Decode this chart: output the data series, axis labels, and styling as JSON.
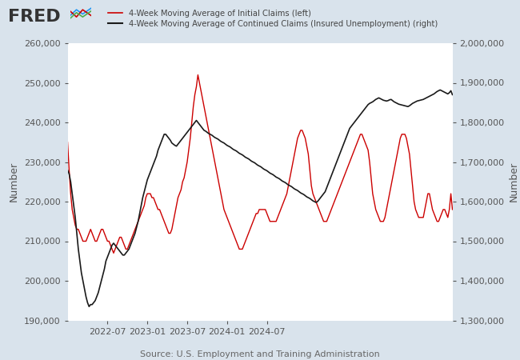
{
  "legend_label_left": "4-Week Moving Average of Initial Claims (left)",
  "legend_label_right": "4-Week Moving Average of Continued Claims (Insured Unemployment) (right)",
  "source": "Source: U.S. Employment and Training Administration",
  "left_ylabel": "Number",
  "right_ylabel": "Number",
  "ylim_left": [
    190000,
    260000
  ],
  "ylim_right": [
    1300000,
    2000000
  ],
  "yticks_left": [
    190000,
    200000,
    210000,
    220000,
    230000,
    240000,
    250000,
    260000
  ],
  "yticks_right": [
    1300000,
    1400000,
    1500000,
    1600000,
    1700000,
    1800000,
    1900000,
    2000000
  ],
  "outer_bg_color": "#d9e3ec",
  "plot_bg_color": "#f0f4f8",
  "line_color_left": "#cc0000",
  "line_color_right": "#1a1a1a",
  "grid_color": "#ffffff",
  "xtick_labels": [
    "2022-07",
    "2023-01",
    "2023-07",
    "2024-01",
    "2024-07"
  ],
  "initial_claims": [
    235000,
    228000,
    222000,
    218000,
    216000,
    214000,
    213000,
    213000,
    212000,
    211000,
    210000,
    210000,
    210000,
    211000,
    212000,
    213000,
    212000,
    211000,
    210000,
    210000,
    211000,
    212000,
    213000,
    213000,
    212000,
    211000,
    210000,
    210000,
    209000,
    208000,
    207000,
    208000,
    209000,
    210000,
    211000,
    211000,
    210000,
    209000,
    208000,
    208000,
    209000,
    210000,
    211000,
    212000,
    213000,
    214000,
    215000,
    216000,
    217000,
    218000,
    219000,
    221000,
    222000,
    222000,
    222000,
    221000,
    221000,
    220000,
    219000,
    218000,
    218000,
    217000,
    216000,
    215000,
    214000,
    213000,
    212000,
    212000,
    213000,
    215000,
    217000,
    219000,
    221000,
    222000,
    223000,
    225000,
    226000,
    228000,
    230000,
    233000,
    236000,
    240000,
    244000,
    247000,
    249000,
    252000,
    250000,
    248000,
    246000,
    244000,
    242000,
    240000,
    238000,
    236000,
    234000,
    232000,
    230000,
    228000,
    226000,
    224000,
    222000,
    220000,
    218000,
    217000,
    216000,
    215000,
    214000,
    213000,
    212000,
    211000,
    210000,
    209000,
    208000,
    208000,
    208000,
    209000,
    210000,
    211000,
    212000,
    213000,
    214000,
    215000,
    216000,
    217000,
    217000,
    218000,
    218000,
    218000,
    218000,
    218000,
    217000,
    216000,
    215000,
    215000,
    215000,
    215000,
    215000,
    216000,
    217000,
    218000,
    219000,
    220000,
    221000,
    222000,
    224000,
    226000,
    228000,
    230000,
    232000,
    234000,
    236000,
    237000,
    238000,
    238000,
    237000,
    236000,
    234000,
    232000,
    228000,
    224000,
    222000,
    221000,
    220000,
    219000,
    218000,
    217000,
    216000,
    215000,
    215000,
    215000,
    216000,
    217000,
    218000,
    219000,
    220000,
    221000,
    222000,
    223000,
    224000,
    225000,
    226000,
    227000,
    228000,
    229000,
    230000,
    231000,
    232000,
    233000,
    234000,
    235000,
    236000,
    237000,
    237000,
    236000,
    235000,
    234000,
    233000,
    230000,
    226000,
    222000,
    220000,
    218000,
    217000,
    216000,
    215000,
    215000,
    215000,
    216000,
    218000,
    220000,
    222000,
    224000,
    226000,
    228000,
    230000,
    232000,
    234000,
    236000,
    237000,
    237000,
    237000,
    236000,
    234000,
    232000,
    228000,
    224000,
    220000,
    218000,
    217000,
    216000,
    216000,
    216000,
    216000,
    218000,
    220000,
    222000,
    222000,
    220000,
    218000,
    217000,
    216000,
    215000,
    215000,
    216000,
    217000,
    218000,
    218000,
    217000,
    216000,
    218000,
    222000,
    218000
  ],
  "continued_claims": [
    1680000,
    1670000,
    1650000,
    1620000,
    1590000,
    1560000,
    1520000,
    1480000,
    1450000,
    1420000,
    1400000,
    1380000,
    1360000,
    1345000,
    1335000,
    1340000,
    1340000,
    1345000,
    1350000,
    1360000,
    1370000,
    1385000,
    1400000,
    1415000,
    1430000,
    1450000,
    1460000,
    1470000,
    1480000,
    1490000,
    1495000,
    1490000,
    1485000,
    1480000,
    1475000,
    1470000,
    1465000,
    1465000,
    1470000,
    1475000,
    1480000,
    1490000,
    1500000,
    1510000,
    1520000,
    1535000,
    1550000,
    1570000,
    1590000,
    1610000,
    1625000,
    1640000,
    1655000,
    1665000,
    1675000,
    1685000,
    1695000,
    1705000,
    1715000,
    1730000,
    1740000,
    1750000,
    1760000,
    1770000,
    1770000,
    1765000,
    1760000,
    1755000,
    1748000,
    1745000,
    1742000,
    1740000,
    1745000,
    1750000,
    1755000,
    1760000,
    1765000,
    1770000,
    1775000,
    1780000,
    1785000,
    1790000,
    1795000,
    1800000,
    1805000,
    1800000,
    1795000,
    1790000,
    1785000,
    1780000,
    1778000,
    1775000,
    1772000,
    1770000,
    1768000,
    1765000,
    1762000,
    1760000,
    1758000,
    1755000,
    1752000,
    1750000,
    1748000,
    1745000,
    1742000,
    1740000,
    1738000,
    1735000,
    1732000,
    1730000,
    1728000,
    1725000,
    1722000,
    1720000,
    1718000,
    1715000,
    1712000,
    1710000,
    1708000,
    1705000,
    1702000,
    1700000,
    1698000,
    1695000,
    1692000,
    1690000,
    1688000,
    1685000,
    1682000,
    1680000,
    1678000,
    1675000,
    1672000,
    1670000,
    1668000,
    1665000,
    1662000,
    1660000,
    1658000,
    1655000,
    1652000,
    1650000,
    1648000,
    1645000,
    1642000,
    1640000,
    1638000,
    1635000,
    1632000,
    1630000,
    1628000,
    1625000,
    1622000,
    1620000,
    1618000,
    1615000,
    1612000,
    1610000,
    1608000,
    1605000,
    1602000,
    1600000,
    1598000,
    1600000,
    1605000,
    1610000,
    1615000,
    1620000,
    1625000,
    1635000,
    1645000,
    1655000,
    1665000,
    1675000,
    1685000,
    1695000,
    1705000,
    1715000,
    1725000,
    1735000,
    1745000,
    1755000,
    1765000,
    1775000,
    1785000,
    1790000,
    1795000,
    1800000,
    1805000,
    1810000,
    1815000,
    1820000,
    1825000,
    1830000,
    1835000,
    1840000,
    1845000,
    1848000,
    1850000,
    1852000,
    1855000,
    1858000,
    1860000,
    1862000,
    1860000,
    1858000,
    1856000,
    1855000,
    1854000,
    1855000,
    1857000,
    1858000,
    1855000,
    1852000,
    1850000,
    1848000,
    1846000,
    1845000,
    1844000,
    1843000,
    1842000,
    1841000,
    1840000,
    1842000,
    1845000,
    1848000,
    1850000,
    1852000,
    1854000,
    1855000,
    1856000,
    1857000,
    1858000,
    1860000,
    1862000,
    1864000,
    1866000,
    1868000,
    1870000,
    1872000,
    1875000,
    1878000,
    1880000,
    1882000,
    1880000,
    1878000,
    1876000,
    1874000,
    1872000,
    1875000,
    1880000,
    1870000
  ]
}
